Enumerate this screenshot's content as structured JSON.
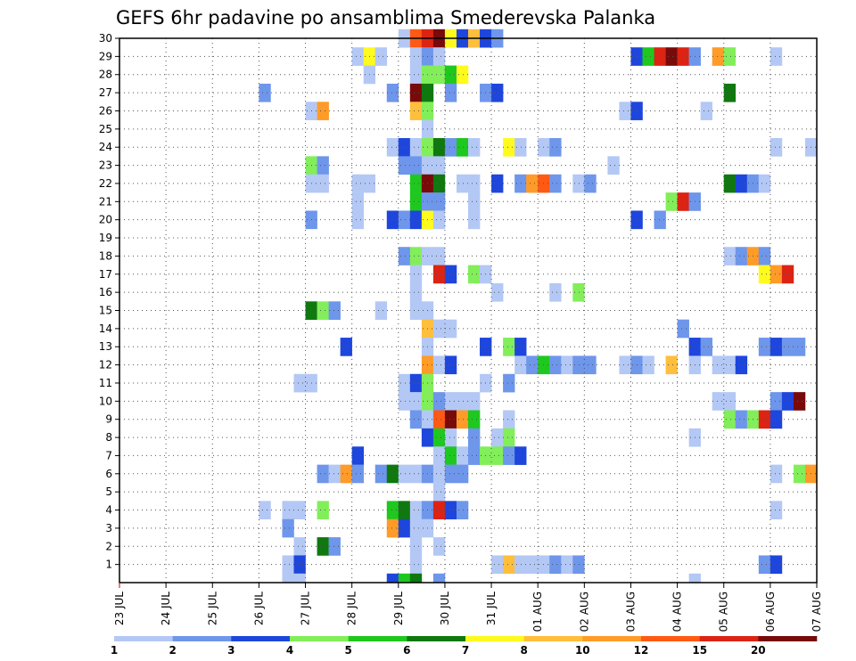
{
  "chart_data": {
    "type": "heatmap",
    "title": "GEFS 6hr padavine po ansamblima Smederevska Palanka",
    "xlabel": "",
    "ylabel": "",
    "grid": true,
    "y_ticks": [
      "1",
      "2",
      "3",
      "4",
      "5",
      "6",
      "7",
      "8",
      "9",
      "10",
      "11",
      "12",
      "13",
      "14",
      "15",
      "16",
      "17",
      "18",
      "19",
      "20",
      "21",
      "22",
      "23",
      "24",
      "25",
      "26",
      "27",
      "28",
      "29",
      "30"
    ],
    "x_ticks": [
      "23 JUL",
      "24 JUL",
      "25 JUL",
      "26 JUL",
      "27 JUL",
      "28 JUL",
      "29 JUL",
      "30 JUL",
      "31 JUL",
      "01 AUG",
      "02 AUG",
      "03 AUG",
      "04 AUG",
      "05 AUG",
      "06 AUG",
      "07 AUG"
    ],
    "x_range_days": [
      0,
      15
    ],
    "y_range": [
      0,
      30
    ],
    "legend": {
      "placement": "bottom",
      "labels": [
        "1",
        "2",
        "3",
        "4",
        "5",
        "6",
        "7",
        "8",
        "10",
        "12",
        "15",
        "20"
      ],
      "colors": [
        "#b4c8f5",
        "#6e96eb",
        "#1e46dc",
        "#82ee5a",
        "#1ec81e",
        "#0f780f",
        "#fffa1e",
        "#ffbe3c",
        "#ff9b28",
        "#ff5a14",
        "#dc2314",
        "#780a0a"
      ]
    },
    "cells": [
      [
        6.0,
        30,
        0
      ],
      [
        6.25,
        30,
        9
      ],
      [
        6.5,
        30,
        10
      ],
      [
        6.75,
        30,
        11
      ],
      [
        7.0,
        30,
        6
      ],
      [
        7.25,
        30,
        2
      ],
      [
        7.5,
        30,
        7
      ],
      [
        7.75,
        30,
        2
      ],
      [
        8.0,
        30,
        1
      ],
      [
        5.0,
        29,
        0
      ],
      [
        5.25,
        29,
        6
      ],
      [
        5.5,
        29,
        0
      ],
      [
        6.25,
        29,
        0
      ],
      [
        6.5,
        29,
        1
      ],
      [
        6.75,
        29,
        0
      ],
      [
        11.0,
        29,
        2
      ],
      [
        11.25,
        29,
        4
      ],
      [
        11.5,
        29,
        10
      ],
      [
        11.75,
        29,
        11
      ],
      [
        12.0,
        29,
        10
      ],
      [
        12.25,
        29,
        1
      ],
      [
        12.75,
        29,
        8
      ],
      [
        13.0,
        29,
        3
      ],
      [
        14.0,
        29,
        0
      ],
      [
        5.25,
        28,
        0
      ],
      [
        6.25,
        28,
        0
      ],
      [
        6.5,
        28,
        3
      ],
      [
        6.75,
        28,
        3
      ],
      [
        7.0,
        28,
        4
      ],
      [
        7.25,
        28,
        6
      ],
      [
        3.0,
        27,
        1
      ],
      [
        5.75,
        27,
        1
      ],
      [
        6.25,
        27,
        11
      ],
      [
        6.5,
        27,
        5
      ],
      [
        7.0,
        27,
        1
      ],
      [
        7.75,
        27,
        1
      ],
      [
        8.0,
        27,
        2
      ],
      [
        13.0,
        27,
        5
      ],
      [
        4.0,
        26,
        0
      ],
      [
        4.25,
        26,
        8
      ],
      [
        6.25,
        26,
        7
      ],
      [
        6.5,
        26,
        3
      ],
      [
        10.75,
        26,
        0
      ],
      [
        11.0,
        26,
        2
      ],
      [
        12.5,
        26,
        0
      ],
      [
        6.5,
        25,
        0
      ],
      [
        5.75,
        24,
        0
      ],
      [
        6.0,
        24,
        2
      ],
      [
        6.25,
        24,
        0
      ],
      [
        6.5,
        24,
        3
      ],
      [
        6.75,
        24,
        5
      ],
      [
        7.0,
        24,
        1
      ],
      [
        7.25,
        24,
        4
      ],
      [
        7.5,
        24,
        0
      ],
      [
        8.25,
        24,
        6
      ],
      [
        8.5,
        24,
        0
      ],
      [
        9.0,
        24,
        0
      ],
      [
        9.25,
        24,
        1
      ],
      [
        14.0,
        24,
        0
      ],
      [
        14.75,
        24,
        0
      ],
      [
        4.0,
        23,
        3
      ],
      [
        4.25,
        23,
        1
      ],
      [
        6.0,
        23,
        1
      ],
      [
        6.25,
        23,
        1
      ],
      [
        6.5,
        23,
        0
      ],
      [
        6.75,
        23,
        0
      ],
      [
        10.5,
        23,
        0
      ],
      [
        4.0,
        22,
        0
      ],
      [
        4.25,
        22,
        0
      ],
      [
        5.0,
        22,
        0
      ],
      [
        5.25,
        22,
        0
      ],
      [
        6.25,
        22,
        4
      ],
      [
        6.5,
        22,
        11
      ],
      [
        6.75,
        22,
        5
      ],
      [
        7.25,
        22,
        0
      ],
      [
        7.5,
        22,
        0
      ],
      [
        8.0,
        22,
        2
      ],
      [
        8.5,
        22,
        1
      ],
      [
        8.75,
        22,
        8
      ],
      [
        9.0,
        22,
        9
      ],
      [
        9.25,
        22,
        1
      ],
      [
        9.75,
        22,
        0
      ],
      [
        10.0,
        22,
        1
      ],
      [
        13.0,
        22,
        5
      ],
      [
        13.25,
        22,
        2
      ],
      [
        13.5,
        22,
        1
      ],
      [
        13.75,
        22,
        0
      ],
      [
        5.0,
        21,
        0
      ],
      [
        6.25,
        21,
        4
      ],
      [
        6.5,
        21,
        1
      ],
      [
        6.75,
        21,
        1
      ],
      [
        7.5,
        21,
        0
      ],
      [
        11.75,
        21,
        3
      ],
      [
        12.0,
        21,
        10
      ],
      [
        12.25,
        21,
        1
      ],
      [
        4.0,
        20,
        1
      ],
      [
        5.0,
        20,
        0
      ],
      [
        5.75,
        20,
        2
      ],
      [
        6.0,
        20,
        1
      ],
      [
        6.25,
        20,
        2
      ],
      [
        6.5,
        20,
        6
      ],
      [
        6.75,
        20,
        0
      ],
      [
        7.5,
        20,
        0
      ],
      [
        11.0,
        20,
        2
      ],
      [
        11.5,
        20,
        1
      ],
      [
        6.0,
        18,
        1
      ],
      [
        6.25,
        18,
        3
      ],
      [
        6.5,
        18,
        0
      ],
      [
        6.75,
        18,
        0
      ],
      [
        13.0,
        18,
        0
      ],
      [
        13.25,
        18,
        1
      ],
      [
        13.5,
        18,
        8
      ],
      [
        13.75,
        18,
        1
      ],
      [
        6.25,
        17,
        0
      ],
      [
        6.75,
        17,
        10
      ],
      [
        7.0,
        17,
        2
      ],
      [
        7.5,
        17,
        3
      ],
      [
        7.75,
        17,
        0
      ],
      [
        13.75,
        17,
        6
      ],
      [
        14.0,
        17,
        8
      ],
      [
        14.25,
        17,
        10
      ],
      [
        6.25,
        16,
        0
      ],
      [
        8.0,
        16,
        0
      ],
      [
        9.25,
        16,
        0
      ],
      [
        9.75,
        16,
        3
      ],
      [
        4.0,
        15,
        5
      ],
      [
        4.25,
        15,
        3
      ],
      [
        4.5,
        15,
        1
      ],
      [
        5.5,
        15,
        0
      ],
      [
        6.25,
        15,
        0
      ],
      [
        6.5,
        15,
        0
      ],
      [
        6.5,
        14,
        7
      ],
      [
        6.75,
        14,
        0
      ],
      [
        7.0,
        14,
        0
      ],
      [
        12.0,
        14,
        1
      ],
      [
        4.75,
        13,
        2
      ],
      [
        6.5,
        13,
        0
      ],
      [
        7.75,
        13,
        2
      ],
      [
        8.25,
        13,
        3
      ],
      [
        8.5,
        13,
        2
      ],
      [
        12.25,
        13,
        2
      ],
      [
        12.5,
        13,
        1
      ],
      [
        13.75,
        13,
        1
      ],
      [
        14.0,
        13,
        2
      ],
      [
        14.25,
        13,
        1
      ],
      [
        14.5,
        13,
        1
      ],
      [
        6.5,
        12,
        8
      ],
      [
        6.75,
        12,
        0
      ],
      [
        7.0,
        12,
        2
      ],
      [
        8.5,
        12,
        0
      ],
      [
        8.75,
        12,
        1
      ],
      [
        9.0,
        12,
        4
      ],
      [
        9.25,
        12,
        1
      ],
      [
        9.5,
        12,
        0
      ],
      [
        9.75,
        12,
        1
      ],
      [
        10.0,
        12,
        1
      ],
      [
        10.75,
        12,
        0
      ],
      [
        11.0,
        12,
        1
      ],
      [
        11.25,
        12,
        0
      ],
      [
        11.75,
        12,
        7
      ],
      [
        12.25,
        12,
        0
      ],
      [
        12.75,
        12,
        0
      ],
      [
        13.0,
        12,
        0
      ],
      [
        13.25,
        12,
        2
      ],
      [
        3.75,
        11,
        0
      ],
      [
        4.0,
        11,
        0
      ],
      [
        6.0,
        11,
        0
      ],
      [
        6.25,
        11,
        2
      ],
      [
        6.5,
        11,
        3
      ],
      [
        7.75,
        11,
        0
      ],
      [
        8.25,
        11,
        1
      ],
      [
        6.0,
        10,
        0
      ],
      [
        6.25,
        10,
        0
      ],
      [
        6.5,
        10,
        3
      ],
      [
        6.75,
        10,
        1
      ],
      [
        7.0,
        10,
        0
      ],
      [
        7.25,
        10,
        0
      ],
      [
        7.5,
        10,
        0
      ],
      [
        12.75,
        10,
        0
      ],
      [
        13.0,
        10,
        0
      ],
      [
        14.0,
        10,
        1
      ],
      [
        14.25,
        10,
        2
      ],
      [
        14.5,
        10,
        11
      ],
      [
        6.25,
        9,
        1
      ],
      [
        6.5,
        9,
        0
      ],
      [
        6.75,
        9,
        9
      ],
      [
        7.0,
        9,
        11
      ],
      [
        7.25,
        9,
        8
      ],
      [
        7.5,
        9,
        4
      ],
      [
        8.25,
        9,
        0
      ],
      [
        13.0,
        9,
        3
      ],
      [
        13.25,
        9,
        1
      ],
      [
        13.5,
        9,
        3
      ],
      [
        13.75,
        9,
        10
      ],
      [
        14.0,
        9,
        2
      ],
      [
        6.5,
        8,
        2
      ],
      [
        6.75,
        8,
        4
      ],
      [
        7.0,
        8,
        0
      ],
      [
        7.5,
        8,
        1
      ],
      [
        8.0,
        8,
        0
      ],
      [
        8.25,
        8,
        3
      ],
      [
        12.25,
        8,
        0
      ],
      [
        5.0,
        7,
        2
      ],
      [
        6.75,
        7,
        0
      ],
      [
        7.0,
        7,
        4
      ],
      [
        7.25,
        7,
        0
      ],
      [
        7.5,
        7,
        1
      ],
      [
        7.75,
        7,
        3
      ],
      [
        8.0,
        7,
        3
      ],
      [
        8.25,
        7,
        1
      ],
      [
        8.5,
        7,
        2
      ],
      [
        4.25,
        6,
        1
      ],
      [
        4.5,
        6,
        0
      ],
      [
        4.75,
        6,
        8
      ],
      [
        5.0,
        6,
        1
      ],
      [
        5.5,
        6,
        1
      ],
      [
        5.75,
        6,
        5
      ],
      [
        6.0,
        6,
        0
      ],
      [
        6.25,
        6,
        0
      ],
      [
        6.5,
        6,
        1
      ],
      [
        6.75,
        6,
        0
      ],
      [
        7.0,
        6,
        1
      ],
      [
        7.25,
        6,
        1
      ],
      [
        14.0,
        6,
        0
      ],
      [
        14.5,
        6,
        3
      ],
      [
        14.75,
        6,
        8
      ],
      [
        6.75,
        5,
        0
      ],
      [
        3.0,
        4,
        0
      ],
      [
        3.5,
        4,
        0
      ],
      [
        3.75,
        4,
        0
      ],
      [
        4.25,
        4,
        3
      ],
      [
        5.75,
        4,
        4
      ],
      [
        6.0,
        4,
        5
      ],
      [
        6.25,
        4,
        0
      ],
      [
        6.5,
        4,
        1
      ],
      [
        6.75,
        4,
        10
      ],
      [
        7.0,
        4,
        2
      ],
      [
        7.25,
        4,
        1
      ],
      [
        14.0,
        4,
        0
      ],
      [
        3.5,
        3,
        1
      ],
      [
        5.75,
        3,
        8
      ],
      [
        6.0,
        3,
        2
      ],
      [
        6.25,
        3,
        0
      ],
      [
        6.5,
        3,
        0
      ],
      [
        3.75,
        2,
        0
      ],
      [
        4.25,
        2,
        5
      ],
      [
        4.5,
        2,
        1
      ],
      [
        6.25,
        2,
        0
      ],
      [
        6.75,
        2,
        0
      ],
      [
        3.5,
        1,
        0
      ],
      [
        3.75,
        1,
        2
      ],
      [
        6.25,
        1,
        0
      ],
      [
        8.0,
        1,
        0
      ],
      [
        8.25,
        1,
        7
      ],
      [
        8.5,
        1,
        0
      ],
      [
        8.75,
        1,
        0
      ],
      [
        9.0,
        1,
        0
      ],
      [
        9.25,
        1,
        1
      ],
      [
        9.5,
        1,
        0
      ],
      [
        9.75,
        1,
        1
      ],
      [
        13.75,
        1,
        1
      ],
      [
        14.0,
        1,
        2
      ],
      [
        3.5,
        0,
        0
      ],
      [
        3.75,
        0,
        0
      ],
      [
        5.75,
        0,
        2
      ],
      [
        6.0,
        0,
        4
      ],
      [
        6.25,
        0,
        5
      ],
      [
        6.75,
        0,
        1
      ],
      [
        12.25,
        0,
        0
      ]
    ]
  }
}
